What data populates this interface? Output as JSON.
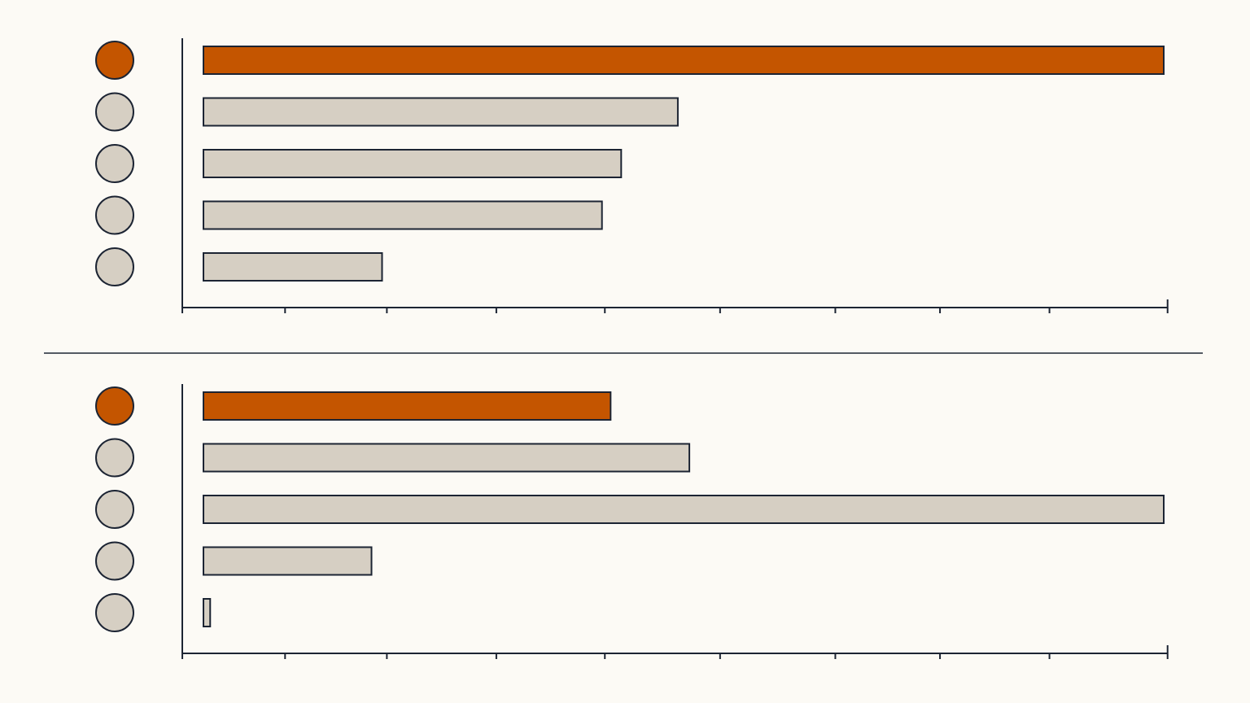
{
  "chart_data": [
    {
      "type": "bar",
      "orientation": "horizontal",
      "categories": [
        null,
        null,
        null,
        null,
        null
      ],
      "values": [
        100,
        49.4,
        43.5,
        41.5,
        18.6
      ],
      "colors": [
        "#c45500",
        "#d6cfc3",
        "#d6cfc3",
        "#d6cfc3",
        "#d6cfc3"
      ],
      "xlim": [
        0,
        100
      ],
      "xticks": [
        -2.2,
        8.5,
        19.1,
        30.5,
        41.8,
        53.8,
        65.8,
        76.7,
        88.1,
        100.4
      ]
    },
    {
      "type": "bar",
      "orientation": "horizontal",
      "categories": [
        null,
        null,
        null,
        null,
        null
      ],
      "values": [
        42.4,
        50.6,
        100,
        17.5,
        0.7
      ],
      "colors": [
        "#c45500",
        "#d6cfc3",
        "#d6cfc3",
        "#d6cfc3",
        "#d6cfc3"
      ],
      "xlim": [
        0,
        100
      ],
      "xticks": [
        -2.2,
        8.5,
        19.1,
        30.5,
        41.8,
        53.8,
        65.8,
        76.7,
        88.1,
        100.4
      ]
    }
  ]
}
